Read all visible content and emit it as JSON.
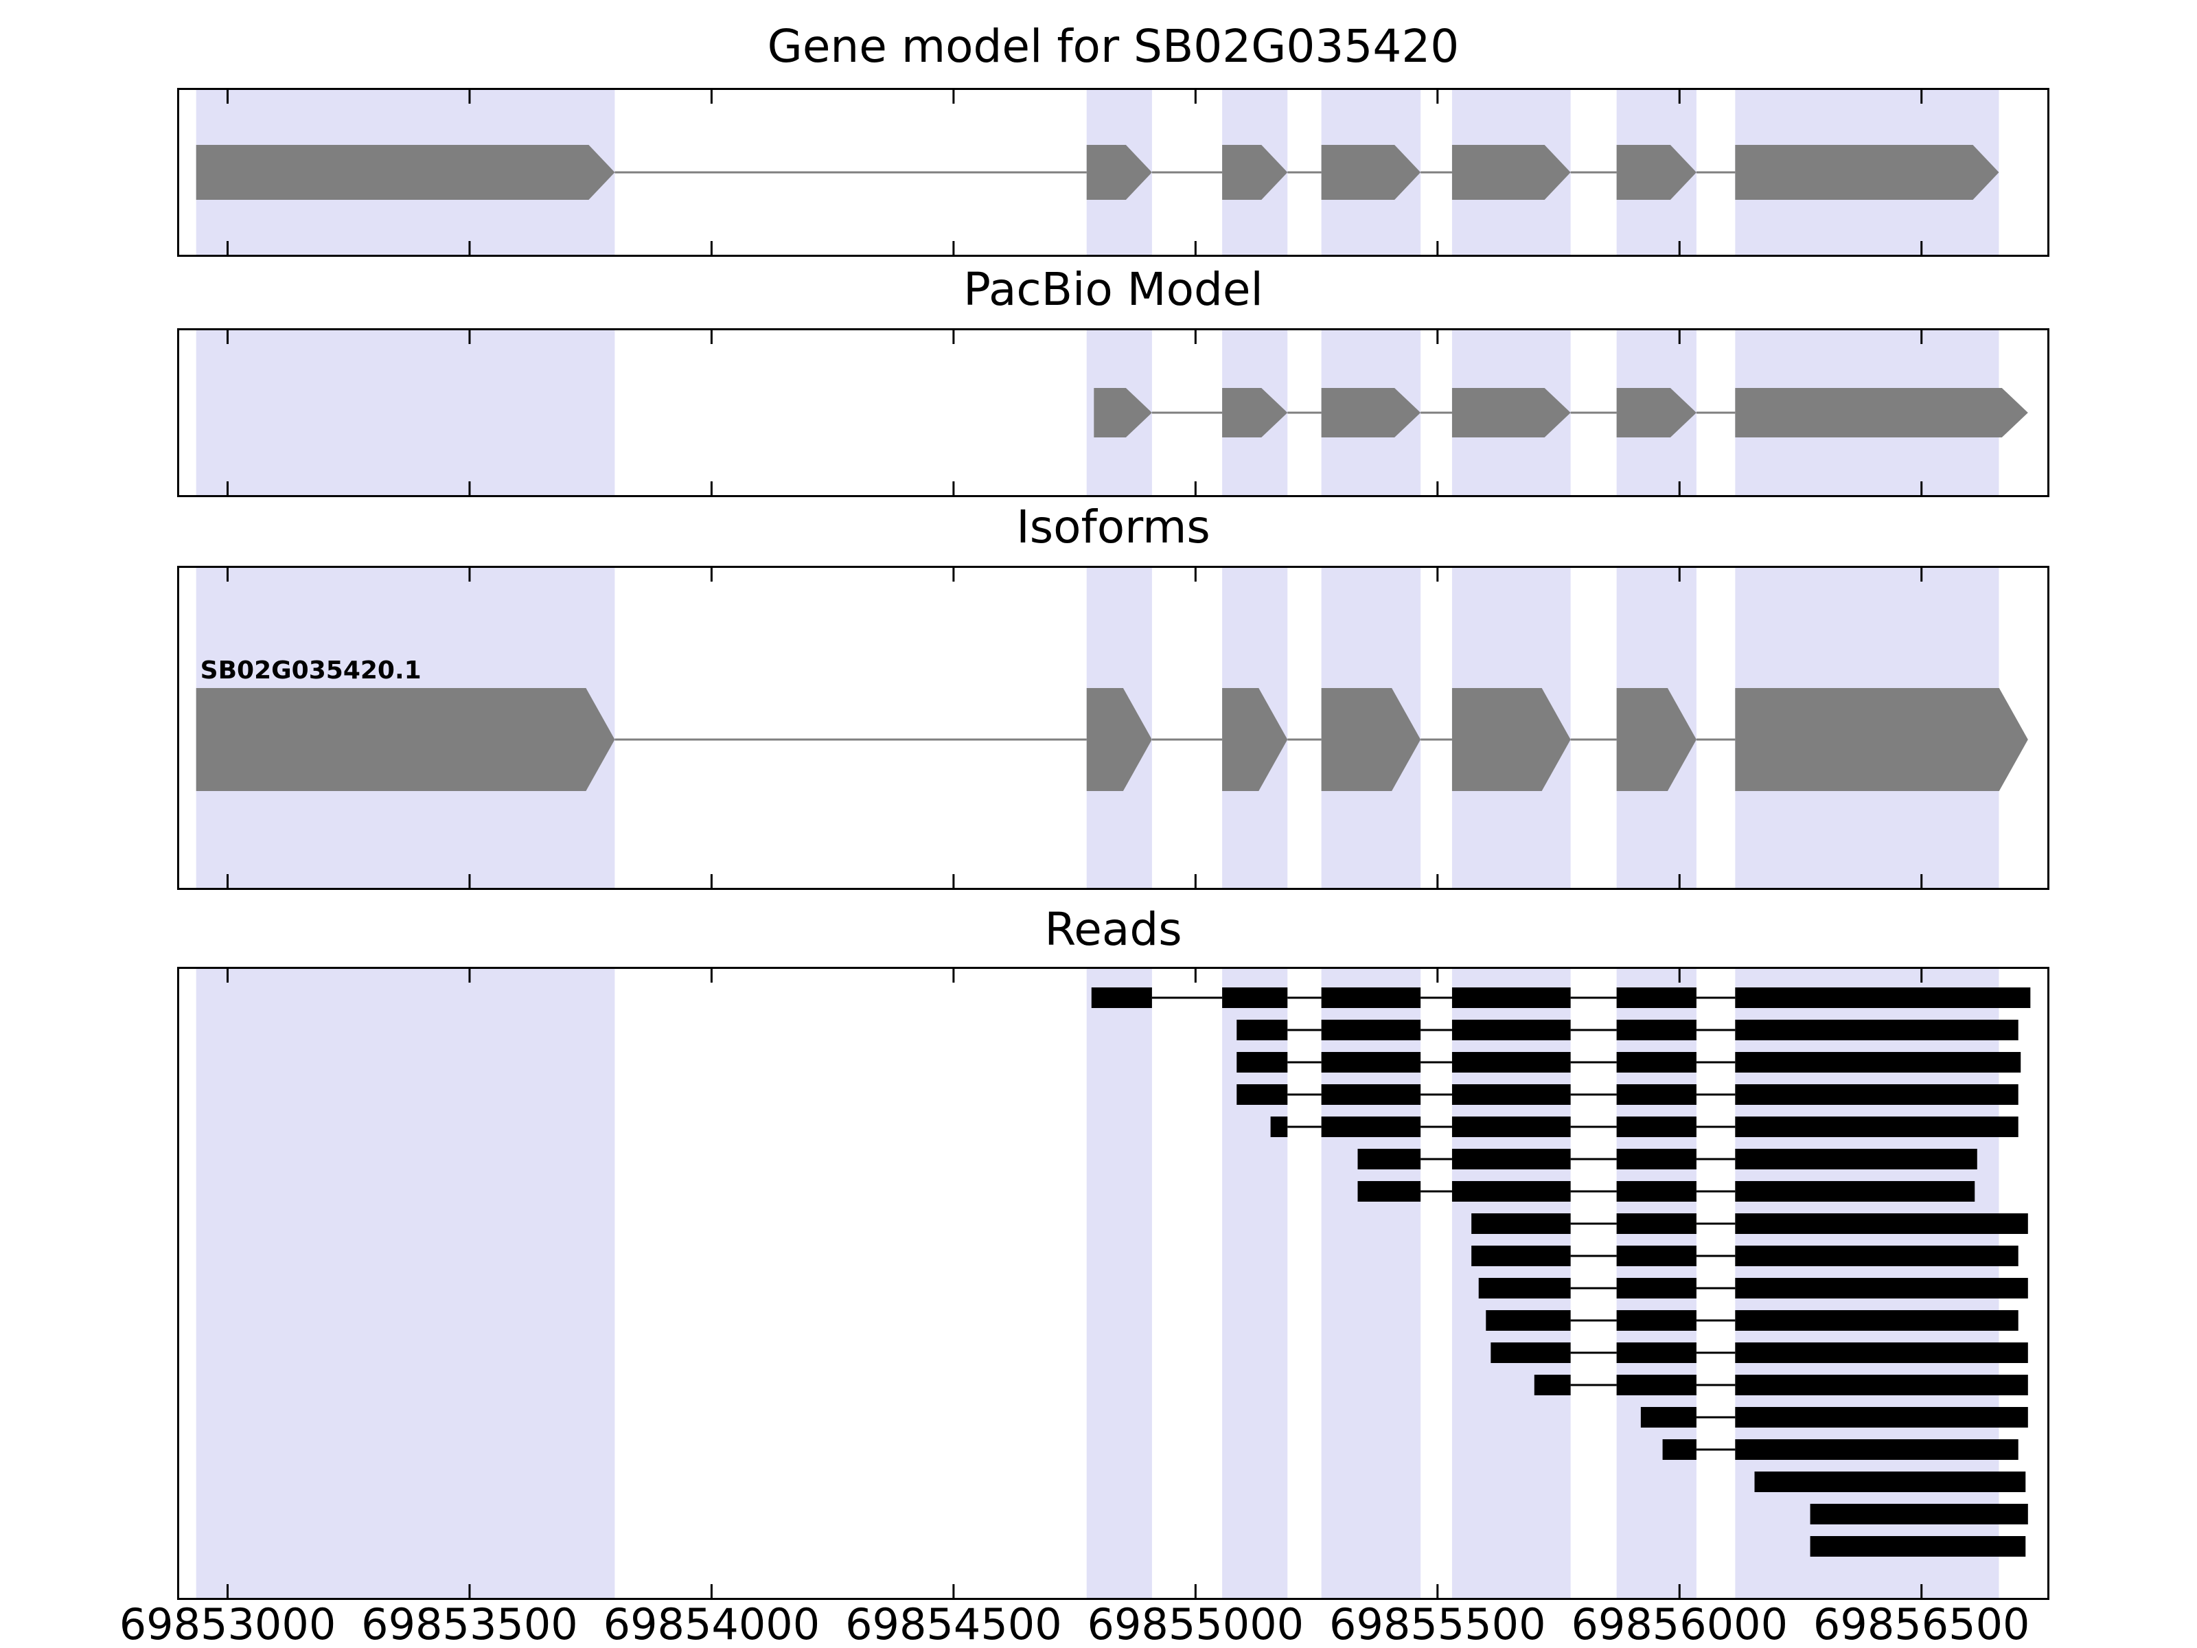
{
  "colors": {
    "exon": "#7f7f7f",
    "intron": "#7f7f7f",
    "read": "#000000",
    "highlight": "#e1e1f7",
    "frame": "#000000",
    "text": "#000000",
    "background": "#ffffff"
  },
  "chart_data": {
    "type": "genome-tracks",
    "x_axis": {
      "min": 69852900,
      "max": 69856760,
      "ticks": [
        69853000,
        69853500,
        69854000,
        69854500,
        69855000,
        69855500,
        69856000,
        69856500
      ],
      "tick_labels": [
        "69853000",
        "69853500",
        "69854000",
        "69854500",
        "69855000",
        "69855500",
        "69856000",
        "69856500"
      ]
    },
    "highlight_regions": [
      [
        69852935,
        69853800
      ],
      [
        69854775,
        69854910
      ],
      [
        69855055,
        69855190
      ],
      [
        69855260,
        69855465
      ],
      [
        69855530,
        69855775
      ],
      [
        69855870,
        69856035
      ],
      [
        69856115,
        69856660
      ]
    ],
    "panels": [
      {
        "id": "gene-model",
        "title": "Gene model for SB02G035420",
        "kind": "transcripts",
        "transcripts": [
          {
            "label": "",
            "strand": "+",
            "exons": [
              [
                69852935,
                69853800
              ],
              [
                69854775,
                69854910
              ],
              [
                69855055,
                69855190
              ],
              [
                69855260,
                69855465
              ],
              [
                69855530,
                69855775
              ],
              [
                69855870,
                69856035
              ],
              [
                69856115,
                69856660
              ]
            ]
          }
        ]
      },
      {
        "id": "pacbio-model",
        "title": "PacBio Model",
        "kind": "transcripts",
        "transcripts": [
          {
            "label": "",
            "strand": "+",
            "exons": [
              [
                69854790,
                69854910
              ],
              [
                69855055,
                69855190
              ],
              [
                69855260,
                69855465
              ],
              [
                69855530,
                69855775
              ],
              [
                69855870,
                69856035
              ],
              [
                69856115,
                69856720
              ]
            ]
          }
        ]
      },
      {
        "id": "isoforms",
        "title": "Isoforms",
        "kind": "transcripts",
        "transcripts": [
          {
            "label": "SB02G035420.1",
            "strand": "+",
            "exons": [
              [
                69852935,
                69853800
              ],
              [
                69854775,
                69854910
              ],
              [
                69855055,
                69855190
              ],
              [
                69855260,
                69855465
              ],
              [
                69855530,
                69855775
              ],
              [
                69855870,
                69856035
              ],
              [
                69856115,
                69856720
              ]
            ]
          }
        ]
      },
      {
        "id": "reads",
        "title": "Reads",
        "kind": "reads",
        "reads": [
          {
            "blocks": [
              [
                69854785,
                69854910
              ],
              [
                69855055,
                69855190
              ],
              [
                69855260,
                69855465
              ],
              [
                69855530,
                69855775
              ],
              [
                69855870,
                69856035
              ],
              [
                69856115,
                69856725
              ]
            ]
          },
          {
            "blocks": [
              [
                69855085,
                69855190
              ],
              [
                69855260,
                69855465
              ],
              [
                69855530,
                69855775
              ],
              [
                69855870,
                69856035
              ],
              [
                69856115,
                69856700
              ]
            ]
          },
          {
            "blocks": [
              [
                69855085,
                69855190
              ],
              [
                69855260,
                69855465
              ],
              [
                69855530,
                69855775
              ],
              [
                69855870,
                69856035
              ],
              [
                69856115,
                69856705
              ]
            ]
          },
          {
            "blocks": [
              [
                69855085,
                69855190
              ],
              [
                69855260,
                69855465
              ],
              [
                69855530,
                69855775
              ],
              [
                69855870,
                69856035
              ],
              [
                69856115,
                69856700
              ]
            ]
          },
          {
            "blocks": [
              [
                69855155,
                69855190
              ],
              [
                69855260,
                69855465
              ],
              [
                69855530,
                69855775
              ],
              [
                69855870,
                69856035
              ],
              [
                69856115,
                69856700
              ]
            ]
          },
          {
            "blocks": [
              [
                69855335,
                69855465
              ],
              [
                69855530,
                69855775
              ],
              [
                69855870,
                69856035
              ],
              [
                69856115,
                69856615
              ]
            ]
          },
          {
            "blocks": [
              [
                69855335,
                69855465
              ],
              [
                69855530,
                69855775
              ],
              [
                69855870,
                69856035
              ],
              [
                69856115,
                69856610
              ]
            ]
          },
          {
            "blocks": [
              [
                69855570,
                69855775
              ],
              [
                69855870,
                69856035
              ],
              [
                69856115,
                69856720
              ]
            ]
          },
          {
            "blocks": [
              [
                69855570,
                69855775
              ],
              [
                69855870,
                69856035
              ],
              [
                69856115,
                69856700
              ]
            ]
          },
          {
            "blocks": [
              [
                69855585,
                69855775
              ],
              [
                69855870,
                69856035
              ],
              [
                69856115,
                69856720
              ]
            ]
          },
          {
            "blocks": [
              [
                69855600,
                69855775
              ],
              [
                69855870,
                69856035
              ],
              [
                69856115,
                69856700
              ]
            ]
          },
          {
            "blocks": [
              [
                69855610,
                69855775
              ],
              [
                69855870,
                69856035
              ],
              [
                69856115,
                69856720
              ]
            ]
          },
          {
            "blocks": [
              [
                69855700,
                69855775
              ],
              [
                69855870,
                69856035
              ],
              [
                69856115,
                69856720
              ]
            ]
          },
          {
            "blocks": [
              [
                69855920,
                69856035
              ],
              [
                69856115,
                69856720
              ]
            ]
          },
          {
            "blocks": [
              [
                69855965,
                69856035
              ],
              [
                69856115,
                69856700
              ]
            ]
          },
          {
            "blocks": [
              [
                69856155,
                69856715
              ]
            ]
          },
          {
            "blocks": [
              [
                69856270,
                69856720
              ]
            ]
          },
          {
            "blocks": [
              [
                69856270,
                69856715
              ]
            ]
          }
        ]
      }
    ]
  }
}
